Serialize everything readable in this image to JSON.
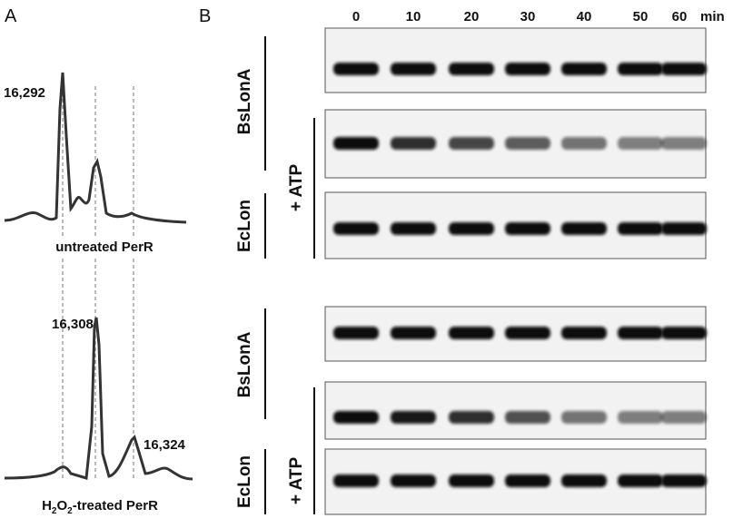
{
  "panel_a": {
    "label": "A",
    "untreated": {
      "peak_label": "16,292",
      "caption": "untreated PerR"
    },
    "treated": {
      "peak_labels": [
        "16,308",
        "16,324"
      ],
      "caption_parts": [
        "H",
        "2",
        "O",
        "2",
        "-treated PerR"
      ]
    }
  },
  "panel_b": {
    "label": "B",
    "time_points": [
      "0",
      "10",
      "20",
      "30",
      "40",
      "50",
      "60"
    ],
    "unit": "min",
    "groups": [
      {
        "protease": "BsLonA",
        "control": "EcLon",
        "condition": "+ ATP"
      },
      {
        "protease": "BsLonA",
        "control": "EcLon",
        "condition": "+ ATP"
      }
    ]
  }
}
